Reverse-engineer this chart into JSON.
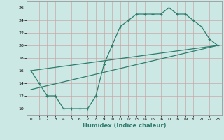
{
  "line1_x": [
    0,
    1,
    2,
    3,
    4,
    5,
    6,
    7,
    8,
    9,
    10,
    11,
    12,
    13,
    14,
    15,
    16,
    17,
    18,
    19,
    20,
    21,
    22,
    23
  ],
  "line1_y": [
    16,
    14,
    12,
    12,
    10,
    10,
    10,
    10,
    12,
    17,
    20,
    23,
    24,
    25,
    25,
    25,
    25,
    26,
    25,
    25,
    24,
    23,
    21,
    20
  ],
  "line2_x": [
    0,
    23
  ],
  "line2_y": [
    16,
    20
  ],
  "line3_x": [
    0,
    23
  ],
  "line3_y": [
    13,
    20
  ],
  "line_color": "#2e7d6e",
  "bg_color": "#cce8e4",
  "grid_color": "#b8d8d4",
  "xlabel": "Humidex (Indice chaleur)",
  "xlim": [
    -0.5,
    23.5
  ],
  "ylim": [
    9,
    27
  ],
  "yticks": [
    10,
    12,
    14,
    16,
    18,
    20,
    22,
    24,
    26
  ],
  "xticks": [
    0,
    1,
    2,
    3,
    4,
    5,
    6,
    7,
    8,
    9,
    10,
    11,
    12,
    13,
    14,
    15,
    16,
    17,
    18,
    19,
    20,
    21,
    22,
    23
  ]
}
